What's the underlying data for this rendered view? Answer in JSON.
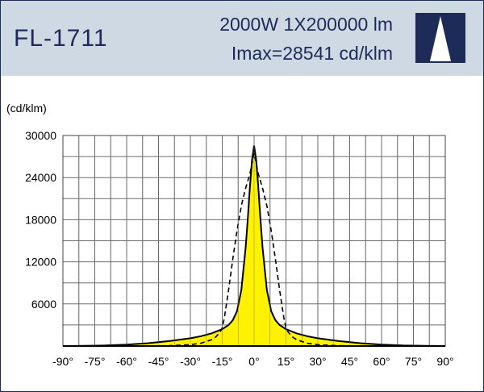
{
  "header": {
    "model": "FL-1711",
    "power_flux": "2000W  1X200000  lm",
    "imax": "Imax=28541 cd/klm",
    "logo_icon": "triangle-beam-logo",
    "colors": {
      "band": "#cfd9e3",
      "text": "#1c2b57",
      "logo_bg": "#1c2b57",
      "logo_fg": "#ffffff"
    }
  },
  "chart_data": {
    "type": "line",
    "ylabel": "(cd/klm)",
    "xlabel": "",
    "ylim": [
      0,
      30000
    ],
    "xlim": [
      -90,
      90
    ],
    "y_ticks": [
      "30000",
      "24000",
      "18000",
      "12000",
      "6000"
    ],
    "x_ticks": [
      "-90°",
      "-75°",
      "-60°",
      "-45°",
      "-30°",
      "-15°",
      "0°",
      "15°",
      "30°",
      "45°",
      "60°",
      "75°",
      "90°"
    ],
    "grid": true,
    "series": [
      {
        "style": "solid-filled",
        "color": "#000000",
        "fill": "#fff200",
        "x": [
          -90,
          -80,
          -70,
          -60,
          -50,
          -40,
          -30,
          -25,
          -20,
          -15,
          -12,
          -10,
          -8,
          -6,
          -4,
          -3,
          -2,
          -1,
          0,
          1,
          2,
          3,
          4,
          6,
          8,
          10,
          12,
          15,
          20,
          25,
          30,
          40,
          50,
          60,
          70,
          80,
          90
        ],
        "y": [
          0,
          30,
          80,
          200,
          400,
          700,
          1100,
          1400,
          1800,
          2400,
          3000,
          3700,
          5000,
          8000,
          14000,
          18000,
          22500,
          26500,
          28541,
          26500,
          22500,
          18000,
          14000,
          8000,
          5000,
          3700,
          3000,
          2400,
          1800,
          1400,
          1100,
          700,
          400,
          200,
          80,
          30,
          0
        ]
      },
      {
        "style": "dashed",
        "color": "#000000",
        "x": [
          -90,
          -70,
          -50,
          -40,
          -30,
          -25,
          -20,
          -18,
          -16,
          -15,
          -14,
          -12,
          -10,
          -8,
          -6,
          -4,
          -2,
          0,
          2,
          4,
          6,
          8,
          10,
          12,
          14,
          15,
          16,
          18,
          20,
          25,
          30,
          40,
          50,
          70,
          90
        ],
        "y": [
          0,
          0,
          0,
          50,
          200,
          400,
          900,
          1300,
          2000,
          2600,
          4000,
          8000,
          12500,
          16500,
          20000,
          22500,
          24500,
          27500,
          24500,
          22500,
          20000,
          16500,
          12500,
          8000,
          4000,
          2600,
          2000,
          1300,
          900,
          400,
          200,
          50,
          0,
          0,
          0
        ]
      }
    ]
  }
}
